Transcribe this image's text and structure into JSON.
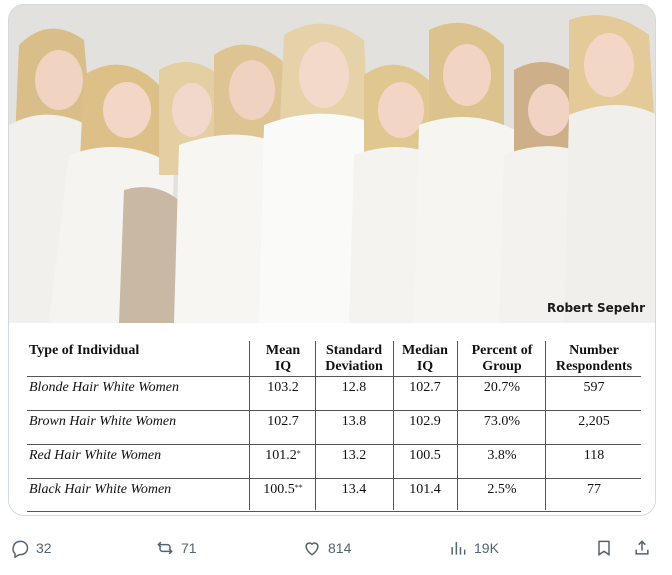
{
  "photo": {
    "watermark": "Robert Sepehr"
  },
  "table": {
    "headers": {
      "type": "Type of Individual",
      "mean_1": "Mean",
      "mean_2": "IQ",
      "sd_1": "Standard",
      "sd_2": "Deviation",
      "median_1": "Median",
      "median_2": "IQ",
      "pct_1": "Percent of",
      "pct_2": "Group",
      "num_1": "Number",
      "num_2": "Respondents"
    },
    "rows": [
      {
        "type": "Blonde Hair White Women",
        "mean": "103.2",
        "mark": "",
        "sd": "12.8",
        "median": "102.7",
        "pct": "20.7%",
        "num": "597"
      },
      {
        "type": "Brown Hair White Women",
        "mean": "102.7",
        "mark": "",
        "sd": "13.8",
        "median": "102.9",
        "pct": "73.0%",
        "num": "2,205"
      },
      {
        "type": "Red Hair White Women",
        "mean": "101.2",
        "mark": "*",
        "sd": "13.2",
        "median": "100.5",
        "pct": "3.8%",
        "num": "118"
      },
      {
        "type": "Black Hair White Women",
        "mean": "100.5",
        "mark": "**",
        "sd": "13.4",
        "median": "101.4",
        "pct": "2.5%",
        "num": "77"
      }
    ]
  },
  "actions": {
    "replies": "32",
    "reposts": "71",
    "likes": "814",
    "views": "19K",
    "icons": [
      "reply-icon",
      "repost-icon",
      "like-icon",
      "views-icon",
      "bookmark-icon",
      "share-icon"
    ],
    "icon_color": "#536471"
  }
}
